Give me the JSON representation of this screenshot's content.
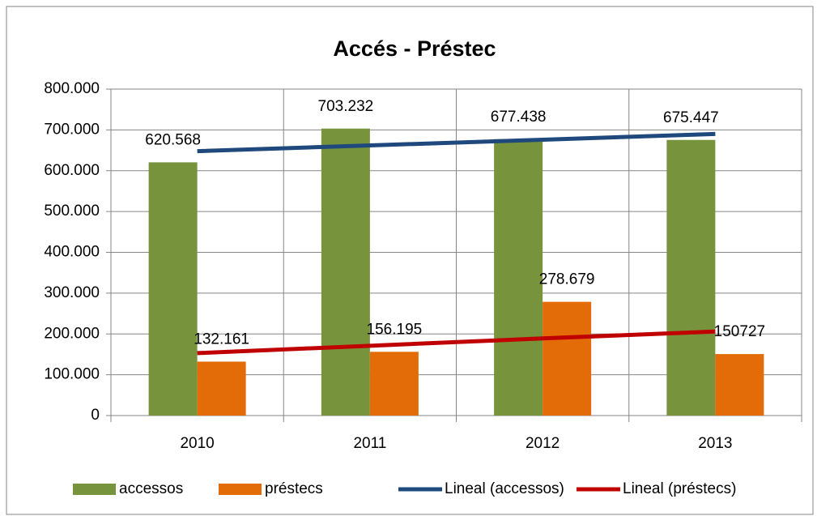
{
  "chart_data": {
    "type": "bar",
    "title": "Accés - Préstec",
    "categories": [
      "2010",
      "2011",
      "2012",
      "2013"
    ],
    "series": [
      {
        "name": "accessos",
        "type": "bar",
        "color": "#77933c",
        "values": [
          620568,
          703232,
          677438,
          675447
        ],
        "value_labels": [
          "620.568",
          "703.232",
          "677.438",
          "675.447"
        ]
      },
      {
        "name": "préstecs",
        "type": "bar",
        "color": "#e36c09",
        "values": [
          132161,
          156195,
          278679,
          150727
        ],
        "value_labels": [
          "132.161",
          "156.195",
          "278.679",
          "150727"
        ]
      },
      {
        "name": "Lineal (accessos)",
        "type": "line",
        "color": "#1f497d",
        "values": [
          648000,
          662000,
          676000,
          690000
        ]
      },
      {
        "name": "Lineal (préstecs)",
        "type": "line",
        "color": "#c00000",
        "values": [
          153000,
          171000,
          189000,
          206000
        ]
      }
    ],
    "ylim": [
      0,
      800000
    ],
    "yticks": [
      0,
      {
        "value": 100000,
        "label": "100.000"
      },
      {
        "value": 200000,
        "label": "200.000"
      },
      {
        "value": 300000,
        "label": "300.000"
      },
      {
        "value": 400000,
        "label": "400.000"
      },
      {
        "value": 500000,
        "label": "500.000"
      },
      {
        "value": 600000,
        "label": "600.000"
      },
      {
        "value": 700000,
        "label": "700.000"
      },
      {
        "value": 800000,
        "label": "800.000"
      }
    ],
    "grid": true,
    "legend": "bottom"
  }
}
